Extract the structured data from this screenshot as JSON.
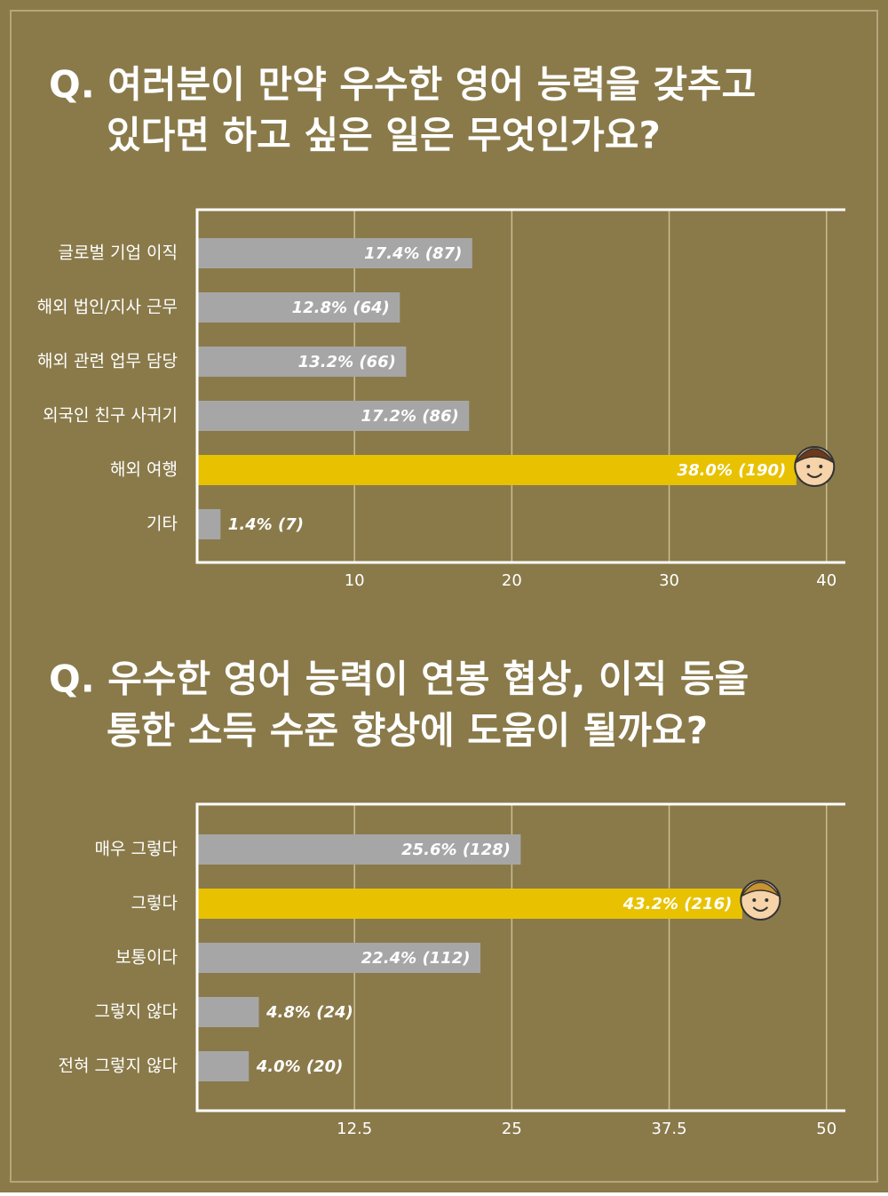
{
  "chart_data": [
    {
      "type": "bar",
      "orientation": "horizontal",
      "title": [
        "Q. 여러분이 만약 우수한 영어 능력을 갖추고",
        "있다면 하고 싶은 일은 무엇인가요?"
      ],
      "categories": [
        "글로벌 기업 이직",
        "해외 법인/지사 근무",
        "해외 관련 업무 담당",
        "외국인 친구 사귀기",
        "해외 여행",
        "기타"
      ],
      "values": [
        17.4,
        12.8,
        13.2,
        17.2,
        38.0,
        1.4
      ],
      "value_labels": [
        "17.4% (87)",
        "12.8% (64)",
        "13.2% (66)",
        "17.2% (86)",
        "38.0% (190)",
        "1.4% (7)"
      ],
      "colors": [
        "#a6a6a6",
        "#a6a6a6",
        "#a6a6a6",
        "#a6a6a6",
        "#e8c200",
        "#a6a6a6"
      ],
      "xlim": [
        0,
        41.2
      ],
      "xticks": [
        10,
        20,
        30,
        40
      ],
      "grid": true
    },
    {
      "type": "bar",
      "orientation": "horizontal",
      "title": [
        "Q. 우수한 영어 능력이 연봉 협상, 이직 등을",
        "통한 소득 수준 향상에 도움이 될까요?"
      ],
      "categories": [
        "매우 그렇다",
        "그렇다",
        "보통이다",
        "그렇지 않다",
        "전혀 그렇지 않다"
      ],
      "values": [
        25.6,
        43.2,
        22.4,
        4.8,
        4.0
      ],
      "value_labels": [
        "25.6% (128)",
        "43.2% (216)",
        "22.4% (112)",
        "4.8% (24)",
        "4.0% (20)"
      ],
      "colors": [
        "#a6a6a6",
        "#e8c200",
        "#a6a6a6",
        "#a6a6a6",
        "#a6a6a6"
      ],
      "xlim": [
        0,
        51.5
      ],
      "xticks": [
        12.5,
        25,
        37.5,
        50
      ],
      "grid": true
    }
  ]
}
